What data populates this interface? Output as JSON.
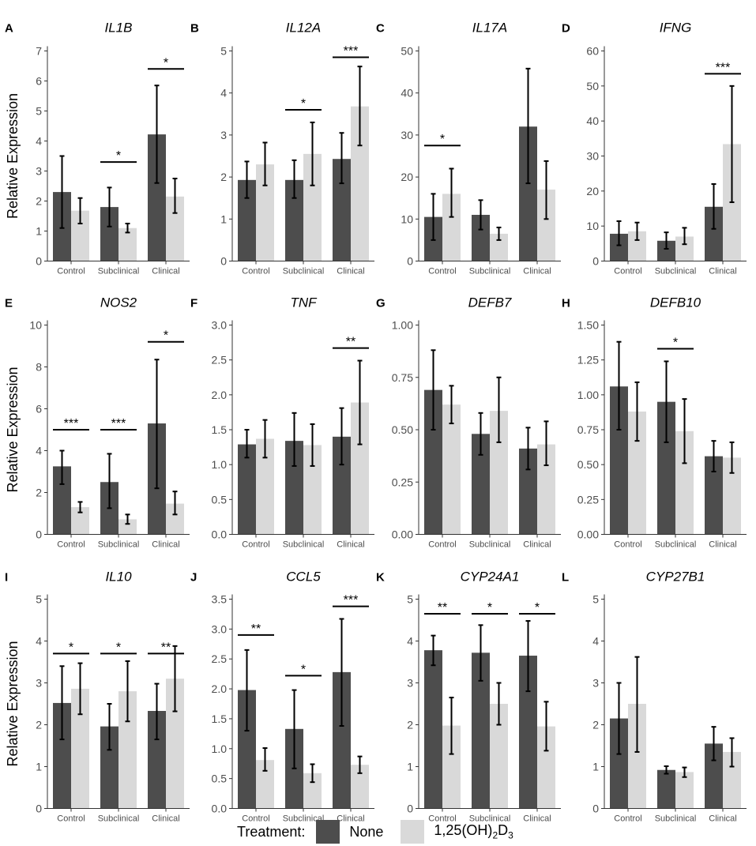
{
  "figure": {
    "ylabel": "Relative Expression",
    "categories": [
      "Control",
      "Subclinical",
      "Clinical"
    ],
    "colors": {
      "none": "#4d4d4d",
      "treated": "#d9d9d9",
      "axis": "#333333",
      "tick": "#4d4d4d"
    }
  },
  "legend": {
    "title": "Treatment:",
    "none_label": "None",
    "treated_label": "1,25(OH)",
    "treated_sub1": "2",
    "treated_mid": "D",
    "treated_sub2": "3"
  },
  "chart_data": [
    {
      "letter": "A",
      "title": "IL1B",
      "type": "bar",
      "ylim": [
        0,
        7
      ],
      "ticks": [
        "0",
        "1",
        "2",
        "3",
        "4",
        "5",
        "6",
        "7"
      ],
      "categories": [
        "Control",
        "Subclinical",
        "Clinical"
      ],
      "series": [
        {
          "name": "None",
          "values": [
            2.3,
            1.8,
            4.22
          ],
          "err_low": [
            1.1,
            1.15,
            2.6
          ],
          "err_high": [
            3.5,
            2.45,
            5.85
          ]
        },
        {
          "name": "1,25(OH)2D3",
          "values": [
            1.68,
            1.1,
            2.15
          ],
          "err_low": [
            1.25,
            0.95,
            1.6
          ],
          "err_high": [
            2.1,
            1.25,
            2.75
          ]
        }
      ],
      "sig": [
        {
          "category": "Subclinical",
          "label": "*",
          "y": 3.3
        },
        {
          "category": "Clinical",
          "label": "*",
          "y": 6.4
        }
      ]
    },
    {
      "letter": "B",
      "title": "IL12A",
      "type": "bar",
      "ylim": [
        0,
        5
      ],
      "ticks": [
        "0",
        "1",
        "2",
        "3",
        "4",
        "5"
      ],
      "categories": [
        "Control",
        "Subclinical",
        "Clinical"
      ],
      "series": [
        {
          "name": "None",
          "values": [
            1.93,
            1.93,
            2.43
          ],
          "err_low": [
            1.5,
            1.5,
            1.85
          ],
          "err_high": [
            2.37,
            2.4,
            3.05
          ]
        },
        {
          "name": "1,25(OH)2D3",
          "values": [
            2.3,
            2.55,
            3.68
          ],
          "err_low": [
            1.8,
            1.8,
            2.75
          ],
          "err_high": [
            2.82,
            3.3,
            4.63
          ]
        }
      ],
      "sig": [
        {
          "category": "Subclinical",
          "label": "*",
          "y": 3.6
        },
        {
          "category": "Clinical",
          "label": "***",
          "y": 4.85
        }
      ]
    },
    {
      "letter": "C",
      "title": "IL17A",
      "type": "bar",
      "ylim": [
        0,
        50
      ],
      "ticks": [
        "0",
        "10",
        "20",
        "30",
        "40",
        "50"
      ],
      "categories": [
        "Control",
        "Subclinical",
        "Clinical"
      ],
      "series": [
        {
          "name": "None",
          "values": [
            10.5,
            11,
            32
          ],
          "err_low": [
            5,
            7.5,
            18.5
          ],
          "err_high": [
            16,
            14.5,
            45.8
          ]
        },
        {
          "name": "1,25(OH)2D3",
          "values": [
            16,
            6.5,
            17
          ],
          "err_low": [
            10.5,
            5,
            10
          ],
          "err_high": [
            22,
            8,
            23.8
          ]
        }
      ],
      "sig": [
        {
          "category": "Control",
          "label": "*",
          "y": 27.5
        }
      ]
    },
    {
      "letter": "D",
      "title": "IFNG",
      "type": "bar",
      "ylim": [
        0,
        60
      ],
      "ticks": [
        "0",
        "10",
        "20",
        "30",
        "40",
        "50",
        "60"
      ],
      "categories": [
        "Control",
        "Subclinical",
        "Clinical"
      ],
      "series": [
        {
          "name": "None",
          "values": [
            7.8,
            5.8,
            15.5
          ],
          "err_low": [
            4.5,
            3.5,
            9.2
          ],
          "err_high": [
            11.4,
            8.2,
            22
          ]
        },
        {
          "name": "1,25(OH)2D3",
          "values": [
            8.5,
            7,
            33.4
          ],
          "err_low": [
            6,
            4.8,
            16.8
          ],
          "err_high": [
            11,
            9.5,
            50
          ]
        }
      ],
      "sig": [
        {
          "category": "Clinical",
          "label": "***",
          "y": 53.5
        }
      ]
    },
    {
      "letter": "E",
      "title": "NOS2",
      "type": "bar",
      "ylim": [
        0,
        10
      ],
      "ticks": [
        "0",
        "2",
        "4",
        "6",
        "8",
        "10"
      ],
      "categories": [
        "Control",
        "Subclinical",
        "Clinical"
      ],
      "series": [
        {
          "name": "None",
          "values": [
            3.25,
            2.5,
            5.3
          ],
          "err_low": [
            2.4,
            1.25,
            2.2
          ],
          "err_high": [
            4.0,
            3.85,
            8.35
          ]
        },
        {
          "name": "1,25(OH)2D3",
          "values": [
            1.3,
            0.72,
            1.47
          ],
          "err_low": [
            1.05,
            0.5,
            0.95
          ],
          "err_high": [
            1.55,
            0.95,
            2.05
          ]
        }
      ],
      "sig": [
        {
          "category": "Control",
          "label": "***",
          "y": 5.0
        },
        {
          "category": "Subclinical",
          "label": "***",
          "y": 5.0
        },
        {
          "category": "Clinical",
          "label": "*",
          "y": 9.2
        }
      ]
    },
    {
      "letter": "F",
      "title": "TNF",
      "type": "bar",
      "ylim": [
        0,
        3
      ],
      "ticks": [
        "0.0",
        "0.5",
        "1.0",
        "1.5",
        "2.0",
        "2.5",
        "3.0"
      ],
      "categories": [
        "Control",
        "Subclinical",
        "Clinical"
      ],
      "series": [
        {
          "name": "None",
          "values": [
            1.29,
            1.34,
            1.4
          ],
          "err_low": [
            1.1,
            0.98,
            1.0
          ],
          "err_high": [
            1.5,
            1.74,
            1.81
          ]
        },
        {
          "name": "1,25(OH)2D3",
          "values": [
            1.37,
            1.28,
            1.89
          ],
          "err_low": [
            1.1,
            0.98,
            1.29
          ],
          "err_high": [
            1.64,
            1.58,
            2.49
          ]
        }
      ],
      "sig": [
        {
          "category": "Clinical",
          "label": "**",
          "y": 2.67
        }
      ]
    },
    {
      "letter": "G",
      "title": "DEFB7",
      "type": "bar",
      "ylim": [
        0,
        1
      ],
      "ticks": [
        "0.00",
        "0.25",
        "0.50",
        "0.75",
        "1.00"
      ],
      "categories": [
        "Control",
        "Subclinical",
        "Clinical"
      ],
      "series": [
        {
          "name": "None",
          "values": [
            0.69,
            0.48,
            0.41
          ],
          "err_low": [
            0.5,
            0.38,
            0.31
          ],
          "err_high": [
            0.88,
            0.58,
            0.51
          ]
        },
        {
          "name": "1,25(OH)2D3",
          "values": [
            0.62,
            0.59,
            0.43
          ],
          "err_low": [
            0.53,
            0.44,
            0.33
          ],
          "err_high": [
            0.71,
            0.75,
            0.54
          ]
        }
      ],
      "sig": []
    },
    {
      "letter": "H",
      "title": "DEFB10",
      "type": "bar",
      "ylim": [
        0,
        1.5
      ],
      "ticks": [
        "0.00",
        "0.25",
        "0.50",
        "0.75",
        "1.00",
        "1.25",
        "1.50"
      ],
      "categories": [
        "Control",
        "Subclinical",
        "Clinical"
      ],
      "series": [
        {
          "name": "None",
          "values": [
            1.06,
            0.95,
            0.56
          ],
          "err_low": [
            0.75,
            0.66,
            0.45
          ],
          "err_high": [
            1.38,
            1.24,
            0.67
          ]
        },
        {
          "name": "1,25(OH)2D3",
          "values": [
            0.88,
            0.74,
            0.55
          ],
          "err_low": [
            0.67,
            0.51,
            0.44
          ],
          "err_high": [
            1.09,
            0.97,
            0.66
          ]
        }
      ],
      "sig": [
        {
          "category": "Subclinical",
          "label": "*",
          "y": 1.33
        }
      ]
    },
    {
      "letter": "I",
      "title": "IL10",
      "type": "bar",
      "ylim": [
        0,
        5
      ],
      "ticks": [
        "0",
        "1",
        "2",
        "3",
        "4",
        "5"
      ],
      "categories": [
        "Control",
        "Subclinical",
        "Clinical"
      ],
      "series": [
        {
          "name": "None",
          "values": [
            2.52,
            1.96,
            2.33
          ],
          "err_low": [
            1.65,
            1.4,
            1.65
          ],
          "err_high": [
            3.4,
            2.5,
            2.98
          ]
        },
        {
          "name": "1,25(OH)2D3",
          "values": [
            2.86,
            2.8,
            3.1
          ],
          "err_low": [
            2.25,
            2.08,
            2.32
          ],
          "err_high": [
            3.47,
            3.52,
            3.88
          ]
        }
      ],
      "sig": [
        {
          "category": "Control",
          "label": "*",
          "y": 3.7
        },
        {
          "category": "Subclinical",
          "label": "*",
          "y": 3.7
        },
        {
          "category": "Clinical",
          "label": "**",
          "y": 3.7
        }
      ]
    },
    {
      "letter": "J",
      "title": "CCL5",
      "type": "bar",
      "ylim": [
        0,
        3.5
      ],
      "ticks": [
        "0.0",
        "0.5",
        "1.0",
        "1.5",
        "2.0",
        "2.5",
        "3.0",
        "3.5"
      ],
      "categories": [
        "Control",
        "Subclinical",
        "Clinical"
      ],
      "series": [
        {
          "name": "None",
          "values": [
            1.98,
            1.33,
            2.28
          ],
          "err_low": [
            1.3,
            0.67,
            1.38
          ],
          "err_high": [
            2.65,
            1.98,
            3.17
          ]
        },
        {
          "name": "1,25(OH)2D3",
          "values": [
            0.81,
            0.59,
            0.73
          ],
          "err_low": [
            0.63,
            0.44,
            0.59
          ],
          "err_high": [
            1.01,
            0.74,
            0.87
          ]
        }
      ],
      "sig": [
        {
          "category": "Control",
          "label": "**",
          "y": 2.9
        },
        {
          "category": "Subclinical",
          "label": "*",
          "y": 2.22
        },
        {
          "category": "Clinical",
          "label": "***",
          "y": 3.38
        }
      ]
    },
    {
      "letter": "K",
      "title": "CYP24A1",
      "type": "bar",
      "ylim": [
        0,
        5
      ],
      "ticks": [
        "0",
        "1",
        "2",
        "3",
        "4",
        "5"
      ],
      "categories": [
        "Control",
        "Subclinical",
        "Clinical"
      ],
      "series": [
        {
          "name": "None",
          "values": [
            3.78,
            3.72,
            3.65
          ],
          "err_low": [
            3.42,
            3.05,
            2.8
          ],
          "err_high": [
            4.13,
            4.38,
            4.48
          ]
        },
        {
          "name": "1,25(OH)2D3",
          "values": [
            1.98,
            2.5,
            1.96
          ],
          "err_low": [
            1.3,
            2.0,
            1.38
          ],
          "err_high": [
            2.65,
            3.0,
            2.55
          ]
        }
      ],
      "sig": [
        {
          "category": "Control",
          "label": "**",
          "y": 4.65
        },
        {
          "category": "Subclinical",
          "label": "*",
          "y": 4.65
        },
        {
          "category": "Clinical",
          "label": "*",
          "y": 4.65
        }
      ]
    },
    {
      "letter": "L",
      "title": "CYP27B1",
      "type": "bar",
      "ylim": [
        0,
        5
      ],
      "ticks": [
        "0",
        "1",
        "2",
        "3",
        "4",
        "5"
      ],
      "categories": [
        "Control",
        "Subclinical",
        "Clinical"
      ],
      "series": [
        {
          "name": "None",
          "values": [
            2.15,
            0.92,
            1.55
          ],
          "err_low": [
            1.3,
            0.83,
            1.15
          ],
          "err_high": [
            3.0,
            1.01,
            1.95
          ]
        },
        {
          "name": "1,25(OH)2D3",
          "values": [
            2.5,
            0.87,
            1.35
          ],
          "err_low": [
            1.35,
            0.75,
            1.0
          ],
          "err_high": [
            3.62,
            0.98,
            1.68
          ]
        }
      ],
      "sig": []
    }
  ]
}
